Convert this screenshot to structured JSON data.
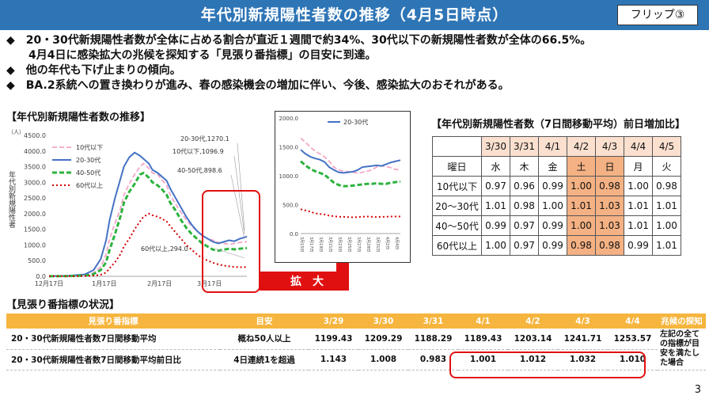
{
  "header": {
    "title": "年代別新規陽性者数の推移（4月5日時点）",
    "flip_label": "フリップ③"
  },
  "bullets": [
    "◆　20・30代新規陽性者数が全体に占める割合が直近１週間で約34%、30代以下の新規陽性者数が全体の66.5%。",
    "　　4月4日に感染拡大の兆候を探知する「見張り番指標」の目安に到達。",
    "◆　他の年代も下げ止まりの傾向。",
    "◆　BA.2系統への置き換わりが進み、春の感染機会の増加に伴い、今後、感染拡大のおそれがある。"
  ],
  "sections": {
    "trend_title": "【年代別新規陽性者数の推移】",
    "ratio_title": "【年代別新規陽性者数（7日間移動平均）前日増加比】",
    "mimawari_title": "【見張り番指標の状況】"
  },
  "zoom_label": "拡　大",
  "chart_data": [
    {
      "type": "line",
      "unit_label": "（人）",
      "ylabel": "年代別新規陽性者",
      "ylim": [
        0,
        4500
      ],
      "yticks": [
        "0.0",
        "500.0",
        "1000.0",
        "1500.0",
        "2000.0",
        "2500.0",
        "3000.0",
        "3500.0",
        "4000.0",
        "4500.0"
      ],
      "xticks": [
        "12月17日",
        "1月17日",
        "2月17日",
        "3月17日"
      ],
      "grid": false,
      "legend_position": "top-left",
      "colors": {
        "teens_under": "#f4a6c8",
        "20s_30s": "#4472c4",
        "40s_50s": "#2db33e",
        "60s_over": "#d40000"
      },
      "legend": [
        "10代以下",
        "20-30代",
        "40-50代",
        "60代以上"
      ],
      "annotations": [
        "20-30代,1270.1",
        "10代以下,1096.9",
        "40-50代,898.6",
        "60代以上,294.0"
      ],
      "x_day_from_dec17": [
        0,
        10,
        20,
        25,
        29,
        32,
        34,
        37,
        40,
        42,
        45,
        48,
        51,
        53,
        56,
        58,
        61,
        63,
        66,
        68,
        71,
        74,
        77,
        80,
        83,
        86,
        89,
        92,
        95,
        98,
        101,
        104,
        107,
        110,
        111
      ],
      "series": [
        {
          "name": "10代以下",
          "values": [
            5,
            10,
            35,
            110,
            300,
            700,
            1200,
            1700,
            2150,
            2600,
            2950,
            3250,
            3500,
            3600,
            3450,
            3300,
            3250,
            3100,
            2900,
            2600,
            2300,
            2050,
            1800,
            1600,
            1450,
            1300,
            1200,
            1150,
            1080,
            1050,
            1020,
            1050,
            1080,
            1100,
            1096.9
          ]
        },
        {
          "name": "20-30代",
          "values": [
            5,
            12,
            60,
            200,
            550,
            1150,
            1800,
            2500,
            3100,
            3500,
            3800,
            3950,
            3850,
            3750,
            3600,
            3400,
            3300,
            3200,
            3050,
            2800,
            2500,
            2200,
            1900,
            1650,
            1450,
            1300,
            1200,
            1100,
            1050,
            1100,
            1150,
            1120,
            1200,
            1250,
            1270.1
          ]
        },
        {
          "name": "40-50代",
          "values": [
            3,
            6,
            20,
            70,
            200,
            450,
            850,
            1350,
            1900,
            2350,
            2700,
            2950,
            3250,
            3300,
            3150,
            3000,
            2900,
            2800,
            2600,
            2350,
            2100,
            1800,
            1550,
            1350,
            1200,
            1050,
            950,
            850,
            820,
            850,
            880,
            860,
            880,
            900,
            898.6
          ]
        },
        {
          "name": "60代以上",
          "values": [
            2,
            3,
            8,
            20,
            50,
            120,
            260,
            450,
            700,
            950,
            1200,
            1500,
            1750,
            1900,
            2000,
            1950,
            1900,
            1850,
            1750,
            1600,
            1400,
            1200,
            1000,
            850,
            700,
            580,
            500,
            430,
            380,
            340,
            320,
            300,
            290,
            295,
            294.0
          ]
        }
      ]
    },
    {
      "type": "line",
      "ylim": [
        0,
        2000
      ],
      "yticks": [
        "0.0",
        "500.0",
        "1000.0",
        "1500.0",
        "2000.0"
      ],
      "xticks": [
        "3月15日",
        "3月17日",
        "3月19日",
        "3月21日",
        "3月23日",
        "3月25日",
        "3月27日",
        "3月29日",
        "3月31日",
        "4月2日",
        "4月4日"
      ],
      "legend": [
        "20-30代"
      ],
      "legend_position": "top-right",
      "series": [
        {
          "name": "10代以下",
          "values": [
            1650,
            1580,
            1500,
            1430,
            1380,
            1330,
            1250,
            1150,
            1100,
            1080,
            1070,
            1060,
            1050,
            1060,
            1080,
            1100,
            1150,
            1170,
            1160,
            1140,
            1110,
            1100
          ]
        },
        {
          "name": "20-30代",
          "values": [
            1450,
            1380,
            1330,
            1300,
            1280,
            1240,
            1150,
            1100,
            1060,
            1050,
            1060,
            1070,
            1100,
            1150,
            1160,
            1170,
            1180,
            1170,
            1200,
            1230,
            1250,
            1270
          ]
        },
        {
          "name": "40-50代",
          "values": [
            1250,
            1180,
            1120,
            1080,
            1050,
            1020,
            950,
            880,
            840,
            820,
            820,
            830,
            840,
            850,
            860,
            860,
            870,
            860,
            860,
            880,
            890,
            899
          ]
        },
        {
          "name": "60代以上",
          "values": [
            420,
            400,
            380,
            350,
            340,
            330,
            310,
            300,
            290,
            290,
            285,
            280,
            285,
            290,
            295,
            290,
            285,
            290,
            290,
            295,
            295,
            294
          ]
        }
      ]
    }
  ],
  "ratio_table": {
    "dates": [
      "3/30",
      "3/31",
      "4/1",
      "4/2",
      "4/3",
      "4/4",
      "4/5"
    ],
    "weekday_label": "曜日",
    "weekdays": [
      "水",
      "木",
      "金",
      "土",
      "日",
      "月",
      "火"
    ],
    "highlight_cols": [
      3,
      4
    ],
    "rows": [
      {
        "label": "10代以下",
        "values": [
          "0.97",
          "0.96",
          "0.99",
          "1.00",
          "0.98",
          "1.00",
          "0.98"
        ]
      },
      {
        "label": "20～30代",
        "values": [
          "1.01",
          "0.98",
          "1.00",
          "1.01",
          "1.03",
          "1.01",
          "1.01"
        ]
      },
      {
        "label": "40～50代",
        "values": [
          "0.99",
          "0.97",
          "0.99",
          "1.00",
          "1.03",
          "1.01",
          "1.00"
        ]
      },
      {
        "label": "60代以上",
        "values": [
          "1.00",
          "0.97",
          "0.99",
          "0.98",
          "0.98",
          "0.99",
          "1.01"
        ]
      }
    ]
  },
  "mimawari_table": {
    "headers": [
      "見張り番指標",
      "目安",
      "3/29",
      "3/30",
      "3/31",
      "4/1",
      "4/2",
      "4/3",
      "4/4",
      "兆候の探知"
    ],
    "rows": [
      {
        "item": "20・30代新規陽性者数7日間移動平均",
        "meyasu": "概ね50人以上",
        "values": [
          "1199.43",
          "1209.29",
          "1188.29",
          "1189.43",
          "1203.14",
          "1241.71",
          "1253.57"
        ]
      },
      {
        "item": "20・30代新規陽性者数7日間移動平均前日比",
        "meyasu": "4日連続1を超過",
        "values": [
          "1.143",
          "1.008",
          "0.983",
          "1.001",
          "1.012",
          "1.032",
          "1.010"
        ]
      }
    ],
    "note": "左記の全ての指標が目安を満たした場合"
  },
  "page_number": "3",
  "colors": {
    "title_bar": "#2e75b6",
    "table_header": "#f6b53e",
    "alert_red": "#e01010"
  }
}
